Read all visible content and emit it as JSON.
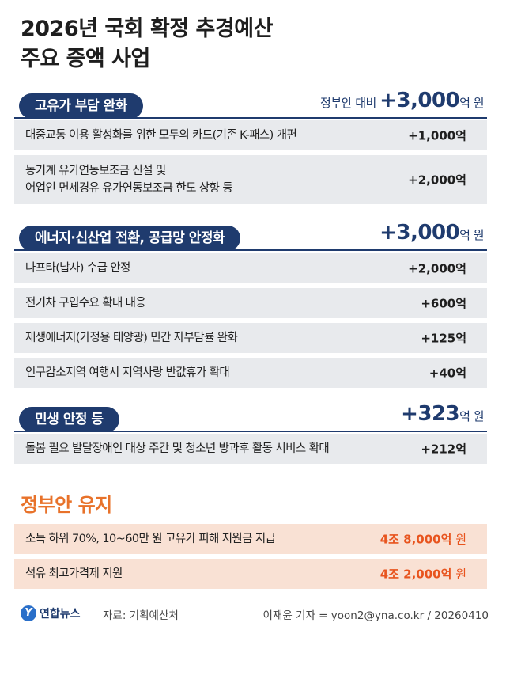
{
  "title": {
    "line1": "2026년 국회 확정 추경예산",
    "line2": "주요 증액 사업"
  },
  "sections": [
    {
      "name": "고유가 부담 완화",
      "total_prefix": "정부안 대비 ",
      "total_value": "+3,000",
      "total_unit": "억 원",
      "items": [
        {
          "label": "대중교통 이용 활성화를 위한 모두의 카드(기존 K-패스) 개편",
          "amount": "+1,000억"
        },
        {
          "label1": "농기계 유가연동보조금 신설 및",
          "label2": "어업인 면세경유 유가연동보조금 한도 상향 등",
          "amount": "+2,000억"
        }
      ]
    },
    {
      "name": "에너지·신산업 전환, 공급망 안정화",
      "total_value": "+3,000",
      "total_unit": "억 원",
      "items": [
        {
          "label": "나프타(납사) 수급 안정",
          "amount": "+2,000억"
        },
        {
          "label": "전기차 구입수요 확대 대응",
          "amount": "+600억"
        },
        {
          "label": "재생에너지(가정용 태양광) 민간 자부담률 완화",
          "amount": "+125억"
        },
        {
          "label": "인구감소지역 여행시 지역사랑 반값휴가 확대",
          "amount": "+40억"
        }
      ]
    },
    {
      "name": "민생 안정 등",
      "total_value": "+323",
      "total_unit": "억 원",
      "items": [
        {
          "label": "돌봄 필요 발달장애인 대상 주간 및 청소년 방과후 활동 서비스 확대",
          "amount": "+212억"
        }
      ]
    }
  ],
  "maintained": {
    "title": "정부안 유지",
    "items": [
      {
        "label": "소득 하위 70%, 10~60만 원 고유가 피해 지원금 지급",
        "amount": "4조 8,000억",
        "unit": " 원"
      },
      {
        "label": "석유 최고가격제 지원",
        "amount": "4조 2,000억",
        "unit": " 원"
      }
    ]
  },
  "footer": {
    "logo_text": "연합뉴스",
    "logo_mark": "Y",
    "source": "자료: 기획예산처",
    "credit": "이재윤 기자 = yoon2@yna.co.kr / 20260410"
  },
  "colors": {
    "navy": "#1f3b6e",
    "orange": "#e8722a",
    "row_gray": "#e8eaed",
    "row_peach": "#f9e1d4"
  }
}
